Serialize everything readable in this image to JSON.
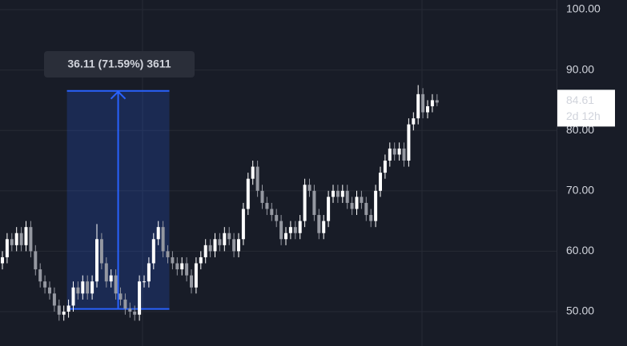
{
  "chart_data": {
    "type": "candlestick",
    "open": [
      58,
      59,
      62,
      61,
      63,
      61,
      64,
      60,
      57,
      55,
      54,
      53,
      51,
      49.5,
      50,
      51,
      54,
      53,
      55,
      53,
      55,
      62,
      58,
      55,
      56,
      53,
      52,
      50.5,
      50,
      49.5,
      55,
      55,
      58,
      62,
      64,
      60,
      59,
      58,
      57,
      58,
      56,
      54,
      58,
      59,
      61,
      60,
      62,
      61,
      63,
      62,
      60,
      62,
      67,
      72,
      74,
      70,
      68,
      67,
      66,
      65,
      62,
      63,
      64,
      63,
      65,
      71,
      70,
      66,
      63,
      65,
      69,
      70,
      69,
      70,
      68,
      67,
      69,
      68,
      66,
      65,
      70,
      73,
      75,
      77,
      76,
      77,
      75,
      81,
      82,
      86,
      83,
      84,
      85
    ],
    "high": [
      60,
      63,
      63,
      64,
      64,
      65,
      65,
      61,
      58,
      56,
      55,
      54,
      52,
      51,
      52,
      55,
      55,
      56,
      56,
      56,
      64.5,
      63,
      59,
      57,
      57,
      54,
      53,
      51.5,
      51,
      56,
      56,
      59,
      63,
      65,
      65,
      61,
      60,
      59,
      59,
      59,
      57,
      59,
      60,
      62,
      62,
      63,
      63,
      64,
      64,
      63,
      63,
      68,
      73,
      75,
      75,
      71,
      69,
      68,
      67,
      66,
      64,
      65,
      65,
      66,
      72,
      72,
      71,
      67,
      66,
      70,
      71,
      71,
      71,
      71,
      69,
      70,
      70,
      69,
      67,
      71,
      74,
      76,
      78,
      78,
      78,
      78,
      82,
      83,
      87.5,
      87,
      85,
      86,
      86
    ],
    "low": [
      57,
      58,
      60,
      60,
      60,
      60,
      59,
      56,
      54,
      53,
      52,
      50,
      48.5,
      48.5,
      49,
      50,
      52,
      52,
      52,
      52,
      54,
      57,
      54,
      54,
      52,
      51,
      49.5,
      49,
      48.5,
      48.5,
      54,
      54,
      57,
      61,
      59,
      58,
      57,
      56,
      56,
      55,
      53,
      53,
      57,
      58,
      59,
      59,
      60,
      60,
      61,
      59,
      59,
      61,
      66,
      71,
      69,
      67,
      66,
      65,
      64,
      61,
      61,
      62,
      62,
      62,
      64,
      69,
      65,
      62,
      62,
      64,
      68,
      68,
      68,
      67,
      66,
      66,
      67,
      65,
      64,
      64,
      69,
      72,
      74,
      75,
      75,
      74,
      74,
      80,
      81,
      82,
      82,
      83,
      84
    ],
    "close": [
      59,
      62,
      61,
      63,
      61,
      64,
      60,
      57,
      55,
      54,
      53,
      51,
      49.5,
      50,
      51,
      54,
      53,
      55,
      53,
      55,
      62,
      58,
      55,
      56,
      53,
      52,
      50.5,
      50,
      49.5,
      55,
      55,
      58,
      62,
      64,
      60,
      59,
      58,
      57,
      58,
      56,
      54,
      58,
      59,
      61,
      60,
      62,
      61,
      63,
      62,
      60,
      62,
      67,
      72,
      74,
      70,
      68,
      67,
      66,
      65,
      62,
      63,
      64,
      63,
      65,
      71,
      70,
      66,
      63,
      65,
      69,
      70,
      69,
      70,
      68,
      67,
      69,
      68,
      66,
      65,
      70,
      73,
      75,
      77,
      76,
      77,
      75,
      81,
      82,
      86,
      83,
      84,
      85,
      84.61
    ],
    "up_color": "#ffffff",
    "down_color": "#9598a1",
    "ylim": [
      44.31,
      101.59
    ],
    "yticks": [
      {
        "value": 50,
        "label": "50.00"
      },
      {
        "value": 60,
        "label": "60.00"
      },
      {
        "value": 70,
        "label": "70.00"
      },
      {
        "value": 80,
        "label": "80.00"
      },
      {
        "value": 90,
        "label": "90.00"
      },
      {
        "value": 100,
        "label": "100.00"
      }
    ],
    "grid": true,
    "countdown": "2d 12h",
    "measure": {
      "label": "36.11 (71.59%) 3611",
      "from": 50.44,
      "to": 86.55,
      "start_index": 14,
      "end_index": 35,
      "color": "#2962ff"
    }
  }
}
